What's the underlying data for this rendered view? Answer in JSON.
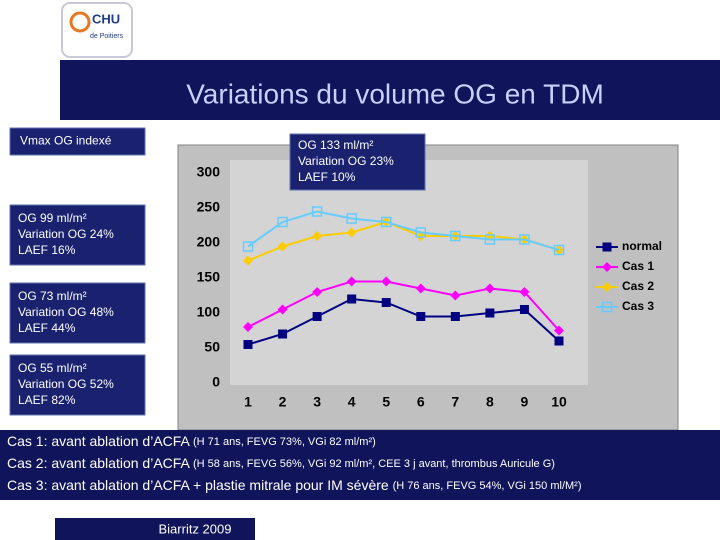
{
  "header": {
    "logo": [
      "CHU",
      "de Poitiers"
    ],
    "title": "Variations du volume OG en TDM"
  },
  "boxes": [
    {
      "lines": [
        "Vmax OG indexé"
      ]
    },
    {
      "lines": [
        "OG 133 ml/m²",
        "Variation OG  23%",
        "LAEF 10%"
      ]
    },
    {
      "lines": [
        "OG 99 ml/m²",
        "Variation OG 24%",
        "LAEF 16%"
      ]
    },
    {
      "lines": [
        "OG 73 ml/m²",
        "Variation OG 48%",
        "LAEF 44%"
      ]
    },
    {
      "lines": [
        "OG 55 ml/m²",
        "Variation OG 52%",
        "LAEF 82%"
      ]
    }
  ],
  "notes": [
    {
      "text": "Cas 1: avant ablation d’ACFA",
      "detail": "(H 71 ans, FEVG 73%, VGi 82 ml/m²)"
    },
    {
      "text": "Cas 2: avant ablation d’ACFA",
      "detail": "(H 58 ans, FEVG 56%, VGi 92 ml/m², CEE 3 j avant, thrombus Auricule G)"
    },
    {
      "text": "Cas 3: avant ablation d’ACFA + plastie mitrale pour IM sévère",
      "detail": "(H 76 ans, FEVG 54%, VGi 150 ml/M²)"
    }
  ],
  "footer": "Biarritz 2009",
  "chart_data": {
    "type": "line",
    "categories": [
      1,
      2,
      3,
      4,
      5,
      6,
      7,
      8,
      9,
      10
    ],
    "series": [
      {
        "name": "normal",
        "color": "#000080",
        "marker": "square",
        "values": [
          55,
          70,
          95,
          120,
          115,
          95,
          95,
          100,
          105,
          60
        ]
      },
      {
        "name": "Cas 1",
        "color": "#ff00ff",
        "marker": "diamond",
        "values": [
          80,
          105,
          130,
          145,
          145,
          135,
          125,
          135,
          130,
          75
        ]
      },
      {
        "name": "Cas 2",
        "color": "#ffcc00",
        "marker": "diamond",
        "values": [
          175,
          195,
          210,
          215,
          230,
          210,
          210,
          210,
          205,
          190
        ]
      },
      {
        "name": "Cas 3",
        "color": "#66ccff",
        "marker": "open-square",
        "values": [
          195,
          230,
          245,
          235,
          230,
          215,
          210,
          205,
          205,
          190
        ]
      }
    ],
    "ylim": [
      0,
      300
    ],
    "yticks": [
      0,
      50,
      100,
      150,
      200,
      250,
      300
    ],
    "grid": false,
    "legend": "right"
  }
}
